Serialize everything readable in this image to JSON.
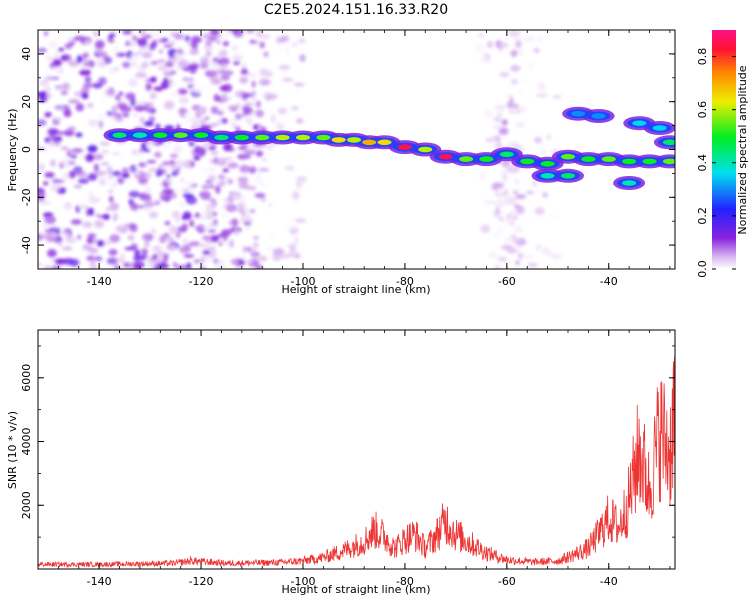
{
  "figure": {
    "title": "C2E5.2024.151.16.33.R20"
  },
  "chart_data": [
    {
      "type": "heatmap",
      "xlabel": "Height of straight line (km)",
      "ylabel": "Frequency (Hz)",
      "xlim": [
        -152,
        -27
      ],
      "ylim": [
        -50,
        50
      ],
      "xticks": [
        -140,
        -120,
        -100,
        -80,
        -60,
        -40
      ],
      "yticks": [
        -40,
        -20,
        0,
        20,
        40
      ],
      "colorbar": {
        "label": "Normalized spectral amplitude",
        "range": [
          0,
          0.9
        ],
        "ticks": [
          0.0,
          0.2,
          0.4,
          0.6,
          0.8
        ]
      },
      "ridge": [
        {
          "x": -136,
          "y": 6,
          "a": 0.45
        },
        {
          "x": -132,
          "y": 6,
          "a": 0.4
        },
        {
          "x": -128,
          "y": 6,
          "a": 0.5
        },
        {
          "x": -124,
          "y": 6,
          "a": 0.55
        },
        {
          "x": -120,
          "y": 6,
          "a": 0.5
        },
        {
          "x": -116,
          "y": 5,
          "a": 0.45
        },
        {
          "x": -112,
          "y": 5,
          "a": 0.5
        },
        {
          "x": -108,
          "y": 5,
          "a": 0.55
        },
        {
          "x": -104,
          "y": 5,
          "a": 0.6
        },
        {
          "x": -100,
          "y": 5,
          "a": 0.6
        },
        {
          "x": -96,
          "y": 5,
          "a": 0.55
        },
        {
          "x": -93,
          "y": 4,
          "a": 0.65
        },
        {
          "x": -90,
          "y": 4,
          "a": 0.6
        },
        {
          "x": -87,
          "y": 3,
          "a": 0.7
        },
        {
          "x": -84,
          "y": 3,
          "a": 0.65
        },
        {
          "x": -80,
          "y": 1,
          "a": 0.85
        },
        {
          "x": -76,
          "y": 0,
          "a": 0.6
        },
        {
          "x": -72,
          "y": -3,
          "a": 0.85
        },
        {
          "x": -68,
          "y": -4,
          "a": 0.55
        },
        {
          "x": -64,
          "y": -4,
          "a": 0.5
        },
        {
          "x": -60,
          "y": -2,
          "a": 0.45
        },
        {
          "x": -56,
          "y": -5,
          "a": 0.5
        },
        {
          "x": -52,
          "y": -6,
          "a": 0.5
        },
        {
          "x": -48,
          "y": -3,
          "a": 0.55
        },
        {
          "x": -44,
          "y": -4,
          "a": 0.5
        },
        {
          "x": -40,
          "y": -4,
          "a": 0.55
        },
        {
          "x": -36,
          "y": -5,
          "a": 0.5
        },
        {
          "x": -32,
          "y": -5,
          "a": 0.5
        },
        {
          "x": -28,
          "y": -5,
          "a": 0.55
        }
      ],
      "branches": [
        {
          "x": -46,
          "y": 15,
          "a": 0.3
        },
        {
          "x": -42,
          "y": 14,
          "a": 0.3
        },
        {
          "x": -34,
          "y": 11,
          "a": 0.35
        },
        {
          "x": -30,
          "y": 9,
          "a": 0.35
        },
        {
          "x": -28,
          "y": 3,
          "a": 0.45
        },
        {
          "x": -36,
          "y": -14,
          "a": 0.4
        },
        {
          "x": -52,
          "y": -11,
          "a": 0.4
        },
        {
          "x": -48,
          "y": -11,
          "a": 0.45
        }
      ]
    },
    {
      "type": "line",
      "xlabel": "Height of straight line (km)",
      "ylabel": "SNR (10 * v/v)",
      "xlim": [
        -152,
        -27
      ],
      "ylim": [
        0,
        7500
      ],
      "xticks": [
        -140,
        -120,
        -100,
        -80,
        -60,
        -40
      ],
      "yticks": [
        2000,
        4000,
        6000
      ],
      "color": "#ee3333",
      "envelope": {
        "x": [
          -152,
          -140,
          -125,
          -122,
          -115,
          -105,
          -100,
          -96,
          -92,
          -88,
          -86,
          -84,
          -82,
          -80,
          -78,
          -76,
          -74,
          -72,
          -70,
          -67,
          -64,
          -60,
          -55,
          -50,
          -47,
          -44,
          -42,
          -40,
          -38,
          -36,
          -34,
          -32,
          -30,
          -28,
          -27
        ],
        "y": [
          200,
          200,
          250,
          350,
          250,
          280,
          350,
          500,
          800,
          1200,
          1700,
          1400,
          900,
          1300,
          1500,
          900,
          1400,
          2100,
          1500,
          1100,
          700,
          400,
          300,
          350,
          600,
          900,
          1500,
          2200,
          1800,
          3000,
          5200,
          3400,
          6000,
          5000,
          7500
        ]
      }
    }
  ]
}
